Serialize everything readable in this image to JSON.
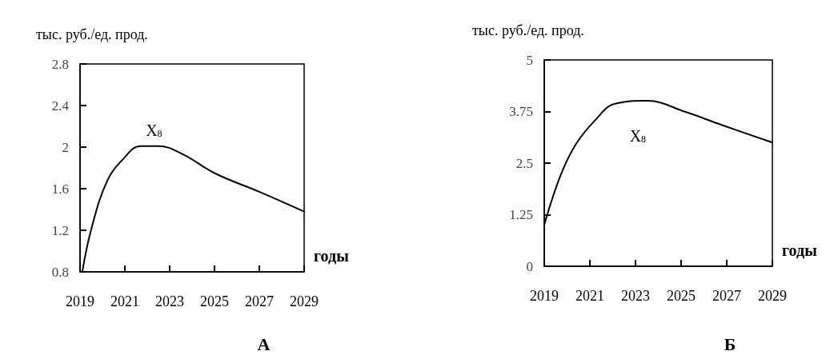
{
  "chart_data": [
    {
      "type": "line",
      "title": "А",
      "ylabel": "тыс. руб./ед. прод.",
      "xlabel": "годы",
      "x": [
        2019.1,
        2019.5,
        2020.2,
        2020.9,
        2021.7,
        2022.5,
        2023.6,
        2025,
        2027,
        2029
      ],
      "series": [
        {
          "color": "#000000",
          "values": [
            0.8,
            1.21,
            1.67,
            1.88,
            2.01,
            2.01,
            1.93,
            1.75,
            1.57,
            1.38
          ]
        }
      ],
      "xlim": [
        2019,
        2029
      ],
      "xticks": [
        2019,
        2021,
        2023,
        2025,
        2027,
        2029
      ],
      "ylim": [
        0.8,
        2.8
      ],
      "yticks": [
        0.8,
        1.2,
        1.6,
        2,
        2.4,
        2.8
      ],
      "annotations": [
        "X$_{8}$"
      ],
      "grid": false,
      "marker": "none",
      "line_style": "solid"
    },
    {
      "type": "line",
      "title": "Б",
      "ylabel": "тыс. руб./ед. прод.",
      "xlabel": "годы",
      "x": [
        2019,
        2019.3,
        2019.8,
        2020.4,
        2021.2,
        2022.1,
        2023.5,
        2025.2,
        2026.8,
        2029
      ],
      "series": [
        {
          "color": "#000000",
          "values": [
            1.0,
            1.55,
            2.32,
            2.97,
            3.52,
            3.94,
            4.01,
            3.74,
            3.42,
            3.0
          ]
        }
      ],
      "xlim": [
        2019,
        2029
      ],
      "xticks": [
        2019,
        2021,
        2023,
        2025,
        2027,
        2029
      ],
      "ylim": [
        0,
        5
      ],
      "yticks": [
        0,
        1.25,
        2.5,
        3.75,
        5
      ],
      "annotations": [
        "X$_{8}$"
      ],
      "grid": false,
      "marker": "none",
      "line_style": "solid"
    }
  ]
}
